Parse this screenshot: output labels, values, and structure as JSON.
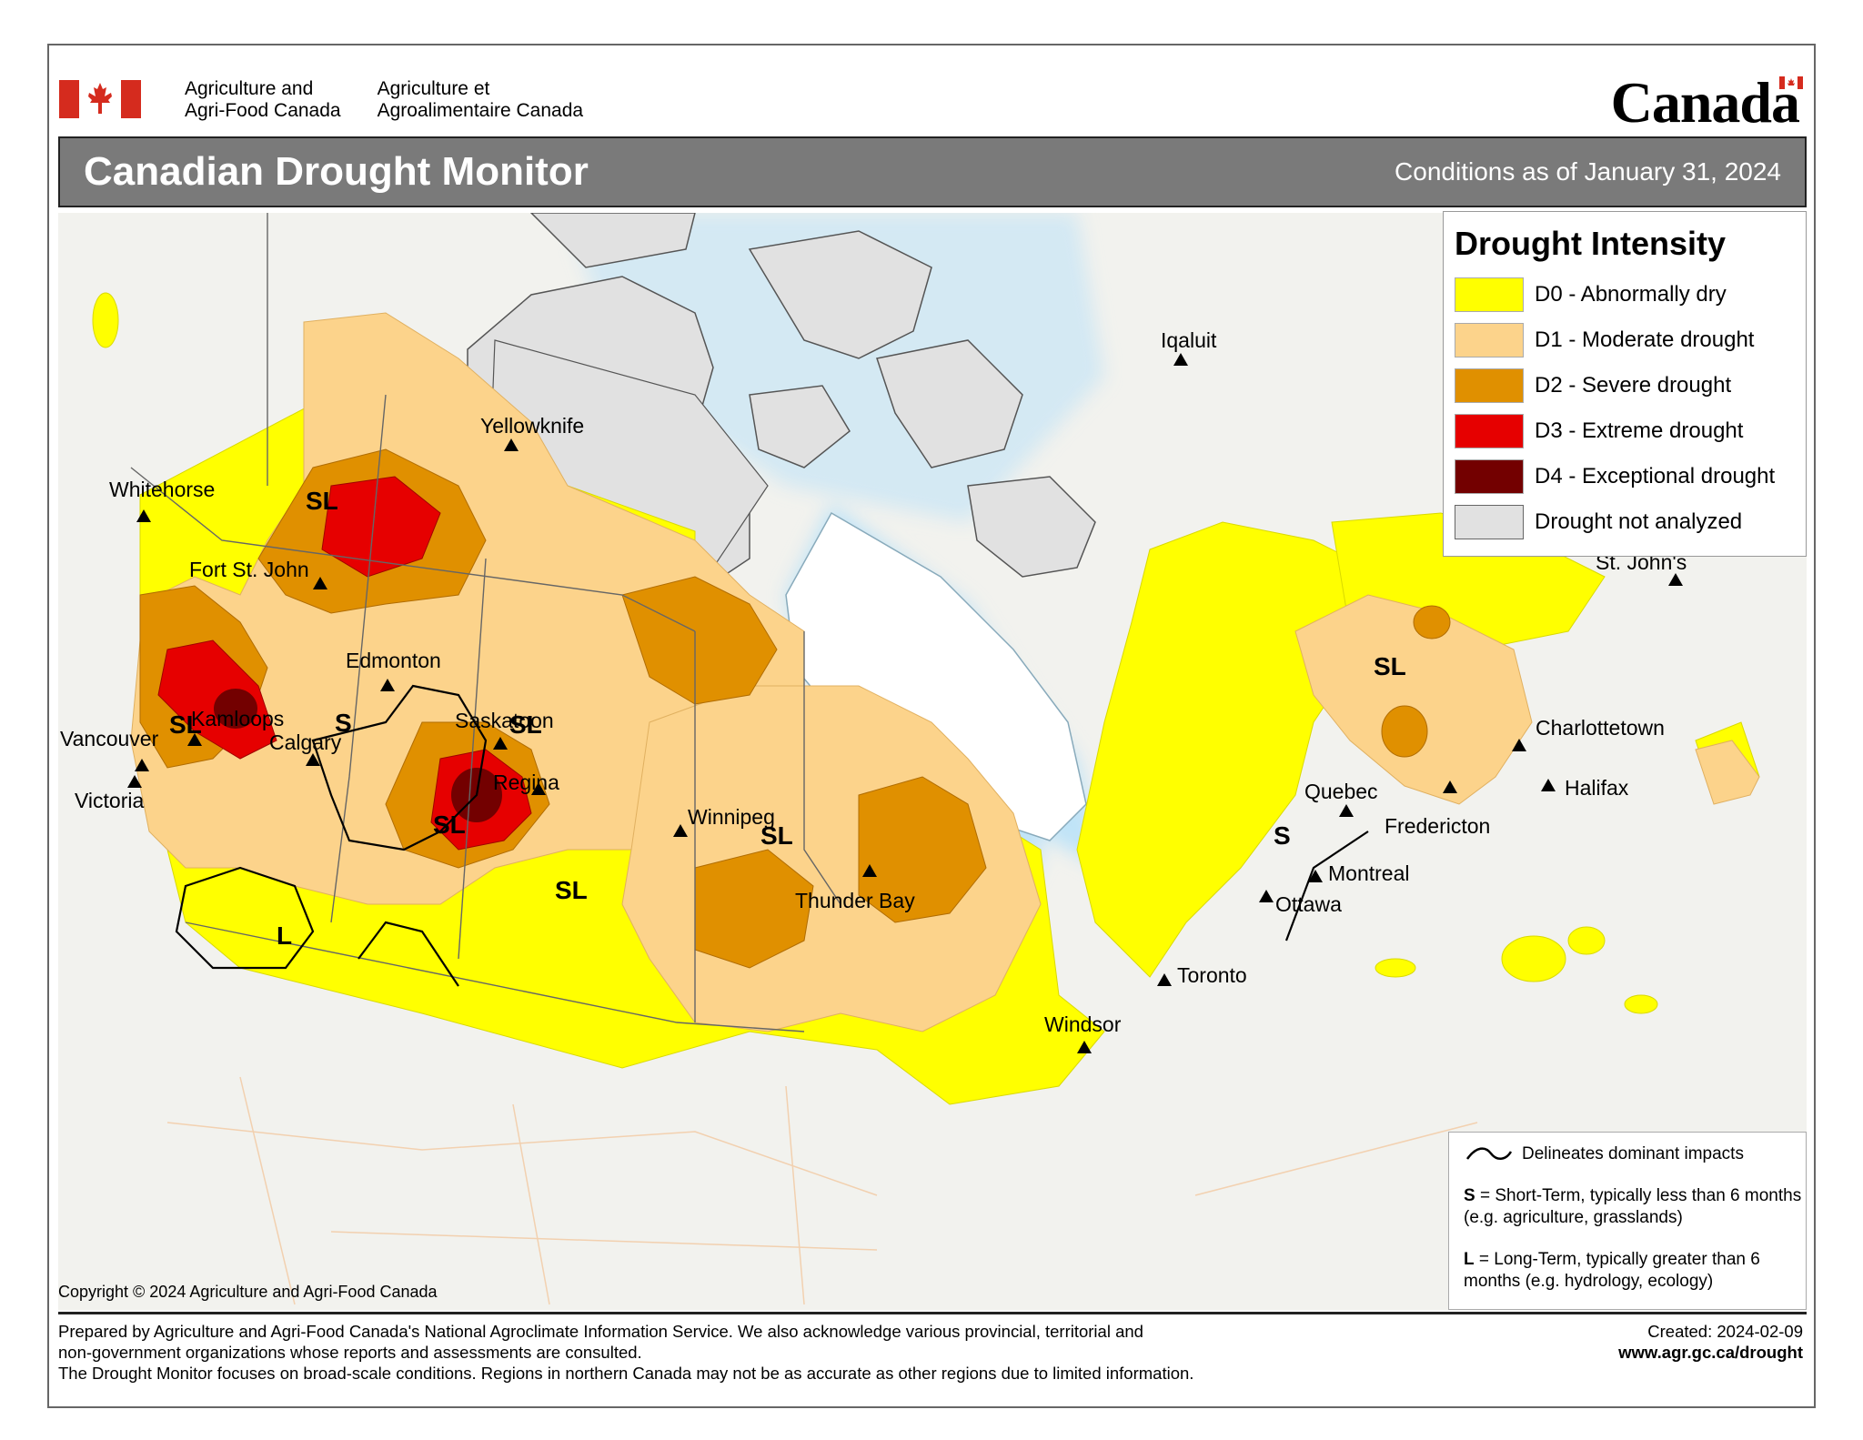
{
  "header": {
    "dept_en": "Agriculture and\nAgri-Food Canada",
    "dept_fr": "Agriculture et\nAgroalimentaire Canada",
    "wordmark": "Canada"
  },
  "title_bar": {
    "title": "Canadian Drought Monitor",
    "conditions": "Conditions as of January 31, 2024"
  },
  "legend": {
    "title": "Drought Intensity",
    "items": [
      {
        "label": "D0 - Abnormally dry",
        "color": "#ffff00"
      },
      {
        "label": "D1 - Moderate drought",
        "color": "#fcd38b"
      },
      {
        "label": "D2 - Severe drought",
        "color": "#e09000"
      },
      {
        "label": "D3 - Extreme drought",
        "color": "#e60000"
      },
      {
        "label": "D4 - Exceptional drought",
        "color": "#730000"
      },
      {
        "label": "Drought not analyzed",
        "color": "#e1e1e1"
      }
    ]
  },
  "impacts": {
    "line_label": "Delineates dominant impacts",
    "s_key": "S",
    "s_text": " = Short-Term, typically less than 6 months (e.g. agriculture, grasslands)",
    "l_key": "L",
    "l_text": " = Long-Term, typically greater  than 6 months (e.g. hydrology, ecology)"
  },
  "cities": {
    "whitehorse": "Whitehorse",
    "yellowknife": "Yellowknife",
    "iqaluit": "Iqaluit",
    "fort_st_john": "Fort St. John",
    "edmonton": "Edmonton",
    "kamloops": "Kamloops",
    "vancouver": "Vancouver",
    "victoria": "Victoria",
    "calgary": "Calgary",
    "saskatoon": "Saskatoon",
    "regina": "Regina",
    "winnipeg": "Winnipeg",
    "thunder_bay": "Thunder Bay",
    "quebec": "Quebec",
    "montreal": "Montreal",
    "ottawa": "Ottawa",
    "toronto": "Toronto",
    "windsor": "Windsor",
    "fredericton": "Fredericton",
    "charlottetown": "Charlottetown",
    "halifax": "Halifax",
    "st_johns": "St. John's"
  },
  "impact_tags": {
    "sl": "SL",
    "s": "S",
    "l": "L"
  },
  "copyright": "Copyright © 2024 Agriculture and Agri-Food Canada",
  "footer": {
    "line1": "Prepared by Agriculture and Agri-Food Canada's National Agroclimate Information Service.  We also acknowledge various provincial, territorial and",
    "line2": "non-government organizations whose reports and assessments are consulted.",
    "line3": "The Drought Monitor focuses on broad-scale conditions.  Regions in northern Canada may not be as accurate as other regions due to limited information.",
    "created": "Created: 2024-02-09",
    "url": "www.agr.gc.ca/drought"
  }
}
